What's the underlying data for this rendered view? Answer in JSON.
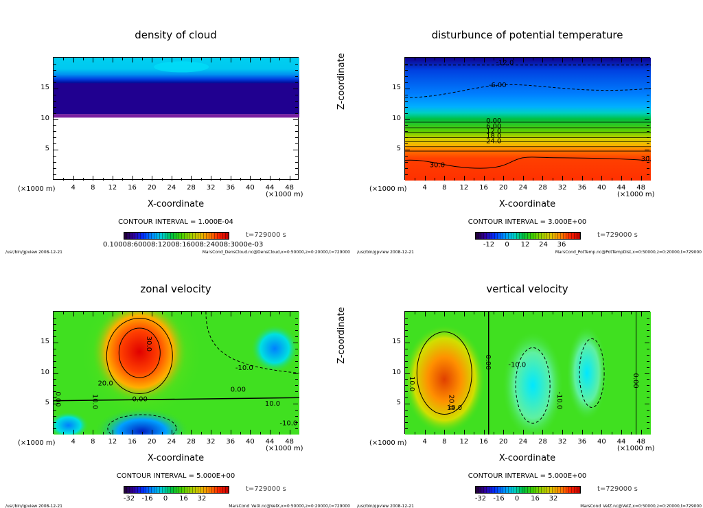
{
  "common": {
    "ylabel": "Z-coordinate",
    "xlabel": "X-coordinate",
    "unit": "(×1000 m)",
    "time": "t=729000 s",
    "footer_left": "/usr/bin/gpview  2008-12-21"
  },
  "chart_data": [
    {
      "type": "heatmap",
      "title": "density of cloud",
      "xlim": [
        0,
        50
      ],
      "ylim": [
        0,
        20
      ],
      "xticks": [
        "4",
        "8",
        "12",
        "16",
        "20",
        "24",
        "28",
        "32",
        "36",
        "40",
        "44",
        "48"
      ],
      "yticks": [
        "5",
        "10",
        "15"
      ],
      "contour_interval": "CONTOUR INTERVAL = 1.000E-04",
      "colorbar_labels": [
        "0.10008:60008:12008:16008:24008:3000e-03"
      ],
      "contour_labels": [],
      "footer_right": "MarsCond_DensCloud.nc@DensCloud,x=0:50000,z=0:20000,t=729000"
    },
    {
      "type": "heatmap",
      "title": "disturbunce of potential temperature",
      "xlim": [
        0,
        50
      ],
      "ylim": [
        0,
        20
      ],
      "xticks": [
        "4",
        "8",
        "12",
        "16",
        "20",
        "24",
        "28",
        "32",
        "36",
        "40",
        "44",
        "48"
      ],
      "yticks": [
        "5",
        "10",
        "15"
      ],
      "contour_interval": "CONTOUR INTERVAL = 3.000E+00",
      "colorbar_labels": [
        "-12",
        "0",
        "12",
        "24",
        "36"
      ],
      "contour_labels": [
        "-12.0",
        "-6.00",
        "0.00",
        "6.00",
        "12.0",
        "18.0",
        "24.0",
        "30.0",
        "30.0"
      ],
      "footer_right": "MarsCond_PotTemp.nc@PotTempDist,x=0:50000,z=0:20000,t=729000"
    },
    {
      "type": "heatmap",
      "title": "zonal velocity",
      "xlim": [
        0,
        50
      ],
      "ylim": [
        0,
        20
      ],
      "xticks": [
        "4",
        "8",
        "12",
        "16",
        "20",
        "24",
        "28",
        "32",
        "36",
        "40",
        "44",
        "48"
      ],
      "yticks": [
        "5",
        "10",
        "15"
      ],
      "contour_interval": "CONTOUR INTERVAL = 5.000E+00",
      "colorbar_labels": [
        "-32",
        "-16",
        "0",
        "16",
        "32"
      ],
      "contour_labels": [
        "30.0",
        "20.0",
        "10.0",
        "0.00",
        "0.00",
        "-10.0",
        "0.00",
        "-10.0",
        "10.0"
      ],
      "footer_right": "MarsCond_VelX.nc@VelX,x=0:50000,z=0:20000,t=729000"
    },
    {
      "type": "heatmap",
      "title": "vertical velocity",
      "xlim": [
        0,
        50
      ],
      "ylim": [
        0,
        20
      ],
      "xticks": [
        "4",
        "8",
        "12",
        "16",
        "20",
        "24",
        "28",
        "32",
        "36",
        "40",
        "44",
        "48"
      ],
      "yticks": [
        "5",
        "10",
        "15"
      ],
      "contour_interval": "CONTOUR INTERVAL = 5.000E+00",
      "colorbar_labels": [
        "-32",
        "-16",
        "0",
        "16",
        "32"
      ],
      "contour_labels": [
        "10.0",
        "20.0",
        "10.0",
        "0.00",
        "-10.0",
        "-10.0",
        "0.00"
      ],
      "footer_right": "MarsCond_VelZ.nc@VelZ,x=0:50000,z=0:20000,t=729000"
    }
  ]
}
